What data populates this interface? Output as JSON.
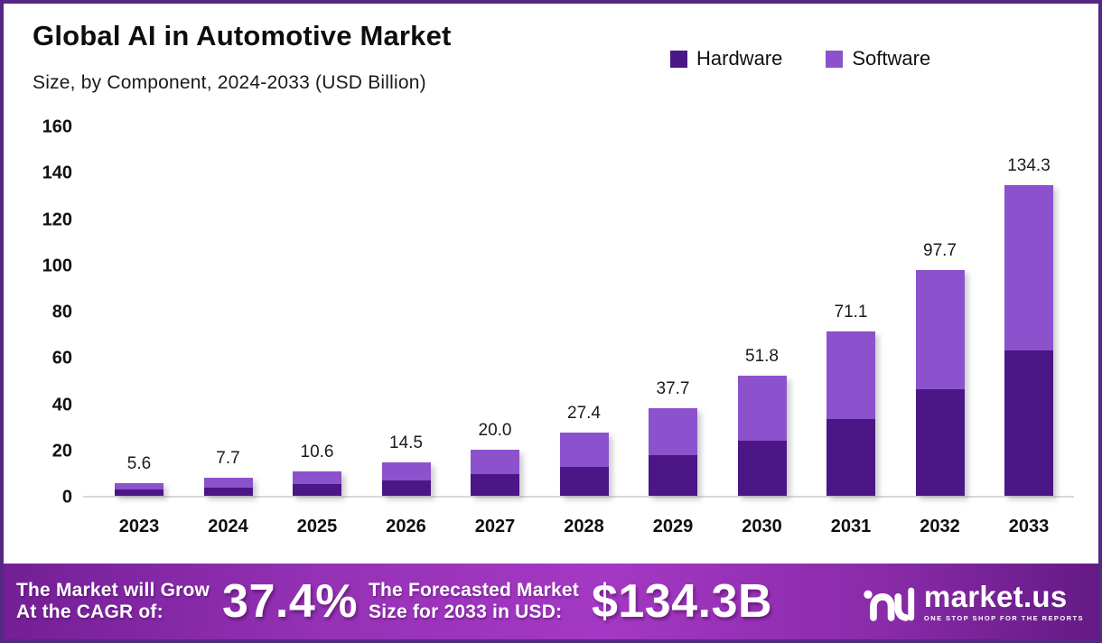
{
  "frame": {
    "border_color": "#562884"
  },
  "header": {
    "title": "Global AI in Automotive Market",
    "subtitle": "Size, by Component, 2024-2033 (USD Billion)"
  },
  "legend": [
    {
      "label": "Hardware",
      "color": "#4B1685"
    },
    {
      "label": "Software",
      "color": "#8C52CD"
    }
  ],
  "chart_data": {
    "type": "bar",
    "stacked": true,
    "title": "Global AI in Automotive Market Size, by Component, 2024-2033 (USD Billion)",
    "categories": [
      "2023",
      "2024",
      "2025",
      "2026",
      "2027",
      "2028",
      "2029",
      "2030",
      "2031",
      "2032",
      "2033"
    ],
    "series": [
      {
        "name": "Hardware",
        "color": "#4B1685",
        "values": [
          2.6,
          3.6,
          4.9,
          6.8,
          9.2,
          12.6,
          17.4,
          23.8,
          33.0,
          46.0,
          62.9
        ]
      },
      {
        "name": "Software",
        "color": "#8C52CD",
        "values": [
          3.0,
          4.1,
          5.7,
          7.7,
          10.8,
          14.8,
          20.3,
          28.0,
          38.1,
          51.7,
          71.4
        ]
      }
    ],
    "totals": [
      5.6,
      7.7,
      10.6,
      14.5,
      20.0,
      27.4,
      37.7,
      51.8,
      71.1,
      97.7,
      134.3
    ],
    "total_labels": [
      "5.6",
      "7.7",
      "10.6",
      "14.5",
      "20.0",
      "27.4",
      "37.7",
      "51.8",
      "71.1",
      "97.7",
      "134.3"
    ],
    "xlabel": "",
    "ylabel": "USD Billion",
    "ylim": [
      0,
      160
    ],
    "yticks": [
      0,
      20,
      40,
      60,
      80,
      100,
      120,
      140,
      160
    ],
    "grid": false,
    "legend_position": "top-right"
  },
  "banner": {
    "cagr_label_line1": "The Market will Grow",
    "cagr_label_line2": "At the CAGR of:",
    "cagr_value": "37.4%",
    "forecast_label_line1": "The Forecasted Market",
    "forecast_label_line2": "Size for 2033 in USD:",
    "forecast_value": "$134.3B",
    "logo_text": "market.us",
    "logo_tagline": "ONE STOP SHOP FOR THE REPORTS"
  }
}
